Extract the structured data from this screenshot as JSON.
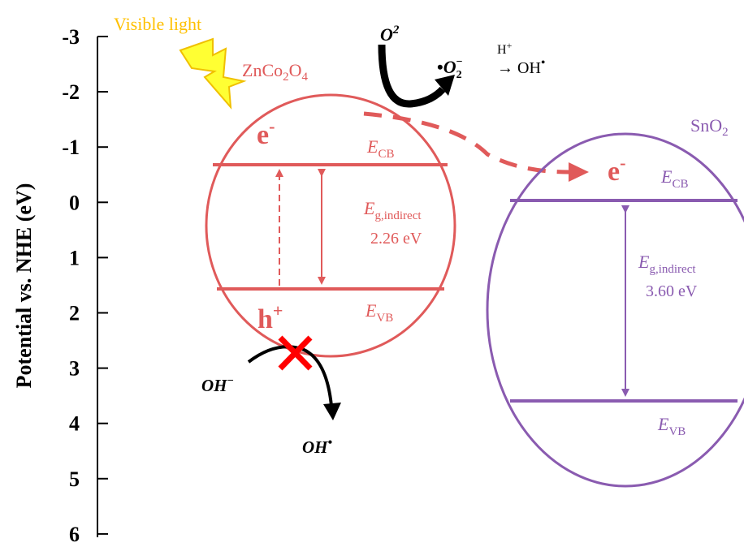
{
  "axis": {
    "ylabel": "Potential vs. NHE (eV)",
    "ticks": [
      "-3",
      "-2",
      "-1",
      "0",
      "1",
      "2",
      "3",
      "4",
      "5",
      "6"
    ]
  },
  "light": {
    "label": "Visible light",
    "color": "#FFC000"
  },
  "znco2o4": {
    "name_base": "ZnCo",
    "name_sub1": "2",
    "name_mid": "O",
    "name_sub2": "4",
    "color": "#E05A5A",
    "electron": "e",
    "electron_sup": "-",
    "hole": "h",
    "hole_sup": "+",
    "cb_base": "E",
    "cb_sub": "CB",
    "vb_base": "E",
    "vb_sub": "VB",
    "eg_base": "E",
    "eg_sub": "g,indirect",
    "eg_value": "2.26 eV"
  },
  "sno2": {
    "name_base": "SnO",
    "name_sub": "2",
    "color": "#8A5BB0",
    "electron": "e",
    "electron_sup": "-",
    "cb_base": "E",
    "cb_sub": "CB",
    "vb_base": "E",
    "vb_sub": "VB",
    "eg_base": "E",
    "eg_sub": "g,indirect",
    "eg_value": "3.60 eV"
  },
  "reactions": {
    "o2": "O",
    "o2_sup": "2",
    "superoxide_dot": "•",
    "superoxide": "O",
    "superoxide_sub": "2",
    "superoxide_sup": "−",
    "hplus": "H",
    "hplus_sup": "+",
    "arrow_product": "→ OH",
    "arrow_product_dot": "•",
    "oh_minus": "OH",
    "oh_minus_sup": "−",
    "oh_radical": "OH",
    "oh_radical_dot": "•"
  }
}
